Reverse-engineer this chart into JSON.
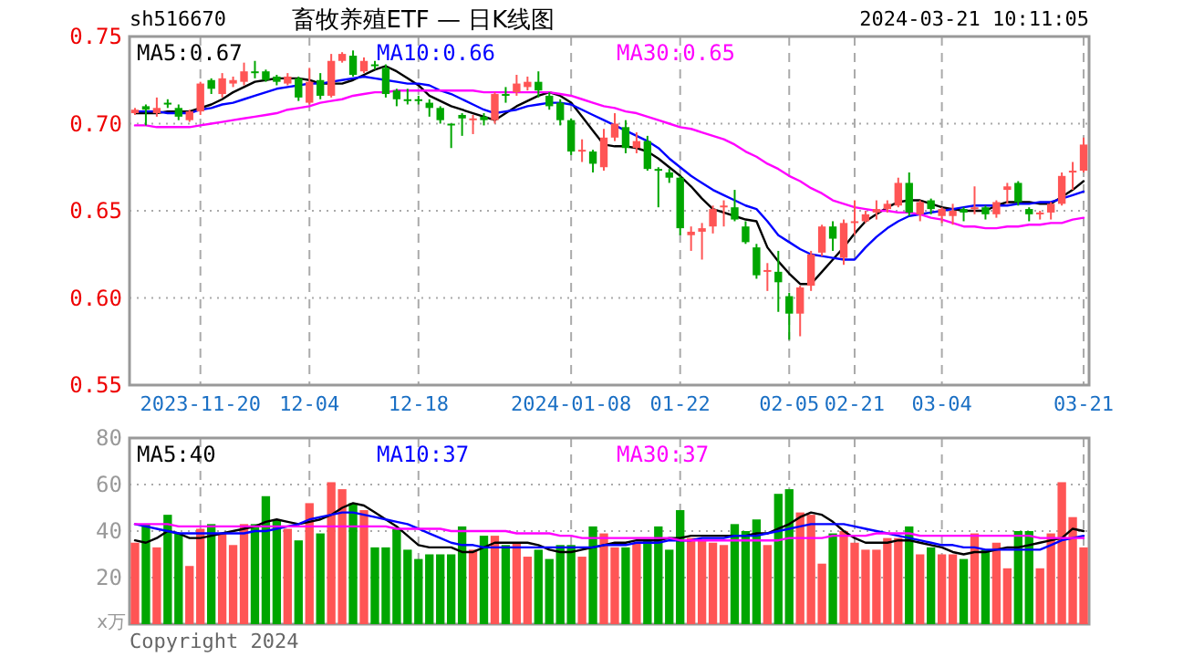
{
  "chart_data": [
    {
      "type": "candlestick",
      "title": "畜牧养殖ETF — 日K线图",
      "subtitle": "sh516670",
      "annotations": [
        "2024-03-21 10:11:05"
      ],
      "categories": [
        null,
        null,
        null,
        null,
        null,
        null,
        "2023-11-20",
        null,
        null,
        null,
        null,
        null,
        null,
        null,
        null,
        null,
        "12-04",
        null,
        null,
        null,
        null,
        null,
        null,
        null,
        null,
        null,
        "12-18",
        null,
        null,
        null,
        null,
        null,
        null,
        null,
        null,
        null,
        null,
        null,
        null,
        null,
        "2024-01-08",
        null,
        null,
        null,
        null,
        null,
        null,
        null,
        null,
        null,
        "01-22",
        null,
        null,
        null,
        null,
        null,
        null,
        null,
        null,
        null,
        "02-05",
        null,
        null,
        null,
        null,
        null,
        "02-21",
        null,
        null,
        null,
        null,
        null,
        null,
        null,
        "03-04",
        null,
        null,
        null,
        null,
        null,
        null,
        null,
        null,
        null,
        null,
        null,
        null,
        "03-21"
      ],
      "ohlc": [
        [
          0.706,
          0.709,
          0.705,
          0.708
        ],
        [
          0.71,
          0.711,
          0.699,
          0.708
        ],
        [
          0.706,
          0.715,
          0.704,
          0.709
        ],
        [
          0.712,
          0.714,
          0.709,
          0.711
        ],
        [
          0.709,
          0.711,
          0.702,
          0.704
        ],
        [
          0.702,
          0.708,
          0.701,
          0.707
        ],
        [
          0.707,
          0.724,
          0.705,
          0.723
        ],
        [
          0.725,
          0.726,
          0.717,
          0.72
        ],
        [
          0.717,
          0.729,
          0.715,
          0.726
        ],
        [
          0.723,
          0.727,
          0.721,
          0.725
        ],
        [
          0.724,
          0.735,
          0.722,
          0.73
        ],
        [
          0.73,
          0.736,
          0.726,
          0.729
        ],
        [
          0.73,
          0.731,
          0.724,
          0.725
        ],
        [
          0.727,
          0.728,
          0.722,
          0.724
        ],
        [
          0.723,
          0.729,
          0.722,
          0.727
        ],
        [
          0.726,
          0.727,
          0.713,
          0.715
        ],
        [
          0.712,
          0.732,
          0.711,
          0.724
        ],
        [
          0.725,
          0.729,
          0.714,
          0.716
        ],
        [
          0.716,
          0.74,
          0.715,
          0.736
        ],
        [
          0.736,
          0.741,
          0.735,
          0.74
        ],
        [
          0.739,
          0.742,
          0.727,
          0.728
        ],
        [
          0.73,
          0.738,
          0.729,
          0.736
        ],
        [
          0.734,
          0.736,
          0.731,
          0.733
        ],
        [
          0.732,
          0.734,
          0.715,
          0.717
        ],
        [
          0.719,
          0.72,
          0.71,
          0.714
        ],
        [
          0.714,
          0.72,
          0.711,
          0.713
        ],
        [
          0.714,
          0.716,
          0.711,
          0.713
        ],
        [
          0.712,
          0.714,
          0.704,
          0.709
        ],
        [
          0.709,
          0.71,
          0.7,
          0.702
        ],
        [
          0.7,
          0.7,
          0.686,
          0.699
        ],
        [
          0.705,
          0.706,
          0.693,
          0.703
        ],
        [
          0.702,
          0.705,
          0.694,
          0.703
        ],
        [
          0.704,
          0.706,
          0.699,
          0.702
        ],
        [
          0.702,
          0.718,
          0.7,
          0.717
        ],
        [
          0.717,
          0.721,
          0.712,
          0.716
        ],
        [
          0.718,
          0.728,
          0.716,
          0.723
        ],
        [
          0.721,
          0.727,
          0.719,
          0.724
        ],
        [
          0.724,
          0.73,
          0.715,
          0.719
        ],
        [
          0.716,
          0.718,
          0.708,
          0.71
        ],
        [
          0.712,
          0.714,
          0.699,
          0.702
        ],
        [
          0.702,
          0.703,
          0.682,
          0.684
        ],
        [
          0.684,
          0.691,
          0.678,
          0.685
        ],
        [
          0.684,
          0.685,
          0.672,
          0.677
        ],
        [
          0.675,
          0.697,
          0.673,
          0.692
        ],
        [
          0.692,
          0.706,
          0.69,
          0.7
        ],
        [
          0.698,
          0.702,
          0.683,
          0.686
        ],
        [
          0.686,
          0.695,
          0.683,
          0.69
        ],
        [
          0.69,
          0.693,
          0.673,
          0.674
        ],
        [
          0.674,
          0.675,
          0.652,
          0.673
        ],
        [
          0.672,
          0.674,
          0.666,
          0.669
        ],
        [
          0.669,
          0.67,
          0.636,
          0.64
        ],
        [
          0.636,
          0.641,
          0.627,
          0.638
        ],
        [
          0.638,
          0.643,
          0.622,
          0.64
        ],
        [
          0.641,
          0.653,
          0.637,
          0.651
        ],
        [
          0.652,
          0.656,
          0.641,
          0.653
        ],
        [
          0.652,
          0.662,
          0.644,
          0.645
        ],
        [
          0.641,
          0.644,
          0.631,
          0.632
        ],
        [
          0.629,
          0.631,
          0.611,
          0.613
        ],
        [
          0.615,
          0.62,
          0.604,
          0.616
        ],
        [
          0.615,
          0.627,
          0.592,
          0.609
        ],
        [
          0.601,
          0.603,
          0.576,
          0.591
        ],
        [
          0.591,
          0.607,
          0.578,
          0.606
        ],
        [
          0.607,
          0.627,
          0.604,
          0.625
        ],
        [
          0.626,
          0.642,
          0.624,
          0.641
        ],
        [
          0.641,
          0.644,
          0.627,
          0.634
        ],
        [
          0.623,
          0.645,
          0.619,
          0.643
        ],
        [
          0.643,
          0.656,
          0.636,
          0.644
        ],
        [
          0.644,
          0.65,
          0.643,
          0.648
        ],
        [
          0.649,
          0.656,
          0.645,
          0.651
        ],
        [
          0.651,
          0.656,
          0.649,
          0.654
        ],
        [
          0.653,
          0.669,
          0.652,
          0.666
        ],
        [
          0.666,
          0.672,
          0.647,
          0.649
        ],
        [
          0.648,
          0.656,
          0.644,
          0.655
        ],
        [
          0.656,
          0.657,
          0.648,
          0.651
        ],
        [
          0.647,
          0.652,
          0.643,
          0.651
        ],
        [
          0.647,
          0.654,
          0.642,
          0.65
        ],
        [
          0.651,
          0.652,
          0.644,
          0.649
        ],
        [
          0.651,
          0.664,
          0.648,
          0.652
        ],
        [
          0.652,
          0.653,
          0.645,
          0.648
        ],
        [
          0.648,
          0.656,
          0.646,
          0.655
        ],
        [
          0.662,
          0.666,
          0.654,
          0.664
        ],
        [
          0.666,
          0.667,
          0.653,
          0.655
        ],
        [
          0.651,
          0.652,
          0.644,
          0.648
        ],
        [
          0.648,
          0.65,
          0.645,
          0.649
        ],
        [
          0.649,
          0.655,
          0.645,
          0.654
        ],
        [
          0.654,
          0.672,
          0.653,
          0.67
        ],
        [
          0.672,
          0.678,
          0.662,
          0.673
        ],
        [
          0.673,
          0.692,
          0.672,
          0.688
        ]
      ],
      "colors": [
        "#ff5555",
        "#00a600",
        "#ff5555",
        "#00a600",
        "#00a600",
        "#ff5555",
        "#ff5555",
        "#00a600",
        "#ff5555",
        "#ff5555",
        "#ff5555",
        "#00a600",
        "#00a600",
        "#00a600",
        "#ff5555",
        "#00a600",
        "#ff5555",
        "#00a600",
        "#ff5555",
        "#ff5555",
        "#00a600",
        "#ff5555",
        "#00a600",
        "#00a600",
        "#00a600",
        "#00a600",
        "#00a600",
        "#00a600",
        "#00a600",
        "#00a600",
        "#00a600",
        "#ff5555",
        "#00a600",
        "#ff5555",
        "#00a600",
        "#ff5555",
        "#ff5555",
        "#00a600",
        "#00a600",
        "#00a600",
        "#00a600",
        "#ff5555",
        "#00a600",
        "#ff5555",
        "#ff5555",
        "#00a600",
        "#ff5555",
        "#00a600",
        "#00a600",
        "#00a600",
        "#00a600",
        "#ff5555",
        "#ff5555",
        "#ff5555",
        "#ff5555",
        "#00a600",
        "#00a600",
        "#00a600",
        "#ff5555",
        "#00a600",
        "#00a600",
        "#ff5555",
        "#ff5555",
        "#ff5555",
        "#00a600",
        "#ff5555",
        "#ff5555",
        "#ff5555",
        "#ff5555",
        "#ff5555",
        "#ff5555",
        "#00a600",
        "#ff5555",
        "#00a600",
        "#ff5555",
        "#ff5555",
        "#00a600",
        "#ff5555",
        "#00a600",
        "#ff5555",
        "#ff5555",
        "#00a600",
        "#00a600",
        "#ff5555",
        "#ff5555",
        "#ff5555",
        "#ff5555",
        "#ff5555"
      ],
      "series": [
        {
          "name": "MA5:0.67",
          "type": "line",
          "color": "#000000",
          "values": [
            0.706,
            0.706,
            0.706,
            0.707,
            0.707,
            0.707,
            0.709,
            0.711,
            0.714,
            0.718,
            0.721,
            0.724,
            0.725,
            0.726,
            0.726,
            0.726,
            0.725,
            0.723,
            0.723,
            0.723,
            0.725,
            0.728,
            0.731,
            0.733,
            0.73,
            0.726,
            0.722,
            0.716,
            0.713,
            0.71,
            0.708,
            0.706,
            0.704,
            0.702,
            0.706,
            0.71,
            0.713,
            0.716,
            0.718,
            0.716,
            0.712,
            0.704,
            0.696,
            0.688,
            0.687,
            0.687,
            0.686,
            0.684,
            0.68,
            0.675,
            0.67,
            0.664,
            0.657,
            0.651,
            0.649,
            0.647,
            0.645,
            0.644,
            0.629,
            0.621,
            0.614,
            0.608,
            0.608,
            0.615,
            0.622,
            0.629,
            0.637,
            0.644,
            0.648,
            0.652,
            0.655,
            0.656,
            0.656,
            0.654,
            0.652,
            0.651,
            0.65,
            0.65,
            0.65,
            0.653,
            0.655,
            0.655,
            0.655,
            0.654,
            0.654,
            0.658,
            0.662,
            0.667
          ]
        },
        {
          "name": "MA10:0.66",
          "type": "line",
          "color": "#0000ff",
          "values": [
            0.707,
            0.707,
            0.707,
            0.706,
            0.706,
            0.706,
            0.708,
            0.709,
            0.711,
            0.712,
            0.714,
            0.716,
            0.718,
            0.72,
            0.721,
            0.722,
            0.723,
            0.723,
            0.724,
            0.725,
            0.726,
            0.727,
            0.726,
            0.725,
            0.724,
            0.723,
            0.723,
            0.722,
            0.719,
            0.717,
            0.714,
            0.711,
            0.708,
            0.706,
            0.707,
            0.708,
            0.71,
            0.711,
            0.712,
            0.712,
            0.711,
            0.708,
            0.705,
            0.702,
            0.699,
            0.696,
            0.693,
            0.69,
            0.686,
            0.68,
            0.675,
            0.67,
            0.666,
            0.662,
            0.659,
            0.656,
            0.653,
            0.651,
            0.644,
            0.636,
            0.632,
            0.628,
            0.625,
            0.624,
            0.623,
            0.622,
            0.622,
            0.629,
            0.635,
            0.64,
            0.644,
            0.647,
            0.648,
            0.649,
            0.65,
            0.651,
            0.652,
            0.653,
            0.653,
            0.653,
            0.653,
            0.654,
            0.654,
            0.655,
            0.655,
            0.657,
            0.659,
            0.661
          ]
        },
        {
          "name": "MA30:0.65",
          "type": "line",
          "color": "#ff00ff",
          "values": [
            0.699,
            0.699,
            0.698,
            0.698,
            0.698,
            0.698,
            0.699,
            0.7,
            0.701,
            0.702,
            0.703,
            0.704,
            0.705,
            0.706,
            0.708,
            0.709,
            0.71,
            0.712,
            0.713,
            0.714,
            0.716,
            0.717,
            0.718,
            0.718,
            0.719,
            0.719,
            0.719,
            0.719,
            0.719,
            0.719,
            0.719,
            0.719,
            0.718,
            0.718,
            0.718,
            0.718,
            0.718,
            0.718,
            0.718,
            0.717,
            0.716,
            0.714,
            0.712,
            0.71,
            0.709,
            0.707,
            0.706,
            0.704,
            0.702,
            0.7,
            0.698,
            0.697,
            0.695,
            0.693,
            0.691,
            0.688,
            0.684,
            0.681,
            0.677,
            0.674,
            0.67,
            0.667,
            0.663,
            0.66,
            0.656,
            0.654,
            0.652,
            0.651,
            0.65,
            0.65,
            0.649,
            0.649,
            0.648,
            0.646,
            0.645,
            0.643,
            0.641,
            0.641,
            0.64,
            0.64,
            0.641,
            0.641,
            0.642,
            0.642,
            0.643,
            0.643,
            0.645,
            0.646
          ]
        }
      ],
      "ylim": [
        0.55,
        0.75
      ],
      "yticks": [
        {
          "value": 0.55,
          "label": "0.55"
        },
        {
          "value": 0.6,
          "label": "0.60"
        },
        {
          "value": 0.65,
          "label": "0.65"
        },
        {
          "value": 0.7,
          "label": "0.70"
        },
        {
          "value": 0.75,
          "label": "0.75"
        }
      ],
      "grid": true,
      "legend": "top"
    },
    {
      "type": "bar",
      "ylabel": "x万",
      "annotations": [
        "Copyright 2024"
      ],
      "categories": [
        null,
        null,
        null,
        null,
        null,
        null,
        null,
        null,
        null,
        null,
        null,
        null,
        null,
        null,
        null,
        null,
        null,
        null,
        null,
        null,
        null,
        null,
        null,
        null,
        null,
        null,
        null,
        null,
        null,
        null,
        null,
        null,
        null,
        null,
        null,
        null,
        null,
        null,
        null,
        null,
        null,
        null,
        null,
        null,
        null,
        null,
        null,
        null,
        null,
        null,
        null,
        null,
        null,
        null,
        null,
        null,
        null,
        null,
        null,
        null,
        null,
        null,
        null,
        null,
        null,
        null,
        null,
        null,
        null,
        null,
        null,
        null,
        null,
        null,
        null,
        null,
        null,
        null,
        null,
        null,
        null,
        null,
        null,
        null,
        null,
        null,
        null,
        null
      ],
      "values": [
        35,
        43,
        33,
        47,
        39,
        25,
        41,
        43,
        39,
        34,
        43,
        43,
        55,
        45,
        41,
        36,
        52,
        39,
        61,
        58,
        52,
        49,
        33,
        33,
        41,
        32,
        28,
        30,
        30,
        30,
        42,
        32,
        38,
        38,
        34,
        35,
        29,
        32,
        28,
        34,
        34,
        29,
        42,
        39,
        33,
        33,
        35,
        36,
        42,
        32,
        49,
        37,
        36,
        35,
        34,
        43,
        40,
        45,
        34,
        56,
        58,
        48,
        47,
        26,
        39,
        40,
        35,
        32,
        32,
        37,
        37,
        42,
        30,
        33,
        30,
        30,
        28,
        39,
        32,
        35,
        24,
        40,
        40,
        24,
        39,
        61,
        46,
        33
      ],
      "colors": [
        "#ff5555",
        "#00a600",
        "#ff5555",
        "#00a600",
        "#00a600",
        "#ff5555",
        "#ff5555",
        "#00a600",
        "#ff5555",
        "#ff5555",
        "#ff5555",
        "#00a600",
        "#00a600",
        "#00a600",
        "#ff5555",
        "#00a600",
        "#ff5555",
        "#00a600",
        "#ff5555",
        "#ff5555",
        "#00a600",
        "#ff5555",
        "#00a600",
        "#00a600",
        "#00a600",
        "#00a600",
        "#00a600",
        "#00a600",
        "#00a600",
        "#00a600",
        "#00a600",
        "#ff5555",
        "#00a600",
        "#ff5555",
        "#00a600",
        "#ff5555",
        "#ff5555",
        "#00a600",
        "#00a600",
        "#00a600",
        "#00a600",
        "#ff5555",
        "#00a600",
        "#ff5555",
        "#ff5555",
        "#00a600",
        "#ff5555",
        "#00a600",
        "#00a600",
        "#00a600",
        "#00a600",
        "#ff5555",
        "#ff5555",
        "#ff5555",
        "#ff5555",
        "#00a600",
        "#00a600",
        "#00a600",
        "#ff5555",
        "#00a600",
        "#00a600",
        "#ff5555",
        "#ff5555",
        "#ff5555",
        "#00a600",
        "#ff5555",
        "#ff5555",
        "#ff5555",
        "#ff5555",
        "#ff5555",
        "#ff5555",
        "#00a600",
        "#ff5555",
        "#00a600",
        "#ff5555",
        "#ff5555",
        "#00a600",
        "#ff5555",
        "#00a600",
        "#ff5555",
        "#ff5555",
        "#00a600",
        "#00a600",
        "#ff5555",
        "#ff5555",
        "#ff5555",
        "#ff5555",
        "#ff5555"
      ],
      "series": [
        {
          "name": "MA5:40",
          "type": "line",
          "color": "#000000",
          "values": [
            36,
            35,
            37,
            40,
            39,
            37,
            37,
            38,
            39,
            40,
            41,
            42,
            44,
            45,
            44,
            43,
            44,
            45,
            47,
            50,
            52,
            51,
            48,
            45,
            42,
            38,
            34,
            33,
            33,
            33,
            31,
            31,
            33,
            35,
            35,
            35,
            35,
            34,
            32,
            31,
            31,
            32,
            33,
            34,
            35,
            35,
            36,
            36,
            36,
            37,
            37,
            38,
            38,
            38,
            38,
            38,
            38,
            39,
            39,
            41,
            43,
            46,
            48,
            47,
            44,
            40,
            37,
            35,
            35,
            35,
            36,
            36,
            35,
            34,
            33,
            31,
            30,
            31,
            31,
            32,
            33,
            33,
            34,
            35,
            36,
            37,
            41,
            40
          ]
        },
        {
          "name": "MA10:37",
          "type": "line",
          "color": "#0000ff",
          "values": [
            43,
            42,
            41,
            40,
            39,
            39,
            39,
            39,
            39,
            39,
            39,
            40,
            40,
            41,
            42,
            43,
            45,
            46,
            47,
            48,
            48,
            47,
            46,
            45,
            44,
            43,
            41,
            39,
            37,
            35,
            34,
            34,
            33,
            33,
            33,
            33,
            33,
            33,
            33,
            33,
            33,
            33,
            33,
            34,
            34,
            34,
            35,
            35,
            35,
            36,
            36,
            36,
            37,
            37,
            37,
            38,
            38,
            38,
            39,
            40,
            41,
            42,
            43,
            43,
            43,
            43,
            42,
            41,
            40,
            39,
            38,
            37,
            36,
            35,
            34,
            34,
            33,
            33,
            32,
            32,
            32,
            32,
            32,
            32,
            34,
            36,
            37,
            38
          ]
        },
        {
          "name": "MA30:37",
          "type": "line",
          "color": "#ff00ff",
          "values": [
            43,
            43,
            43,
            43,
            42,
            42,
            42,
            42,
            42,
            42,
            42,
            42,
            42,
            42,
            42,
            42,
            42,
            42,
            42,
            42,
            42,
            42,
            42,
            42,
            41,
            41,
            41,
            41,
            41,
            40,
            40,
            40,
            40,
            40,
            40,
            39,
            39,
            39,
            39,
            38,
            38,
            37,
            37,
            37,
            37,
            37,
            37,
            37,
            37,
            37,
            36,
            36,
            36,
            36,
            36,
            36,
            36,
            36,
            36,
            36,
            37,
            37,
            37,
            37,
            38,
            38,
            38,
            38,
            39,
            39,
            39,
            39,
            38,
            38,
            38,
            38,
            38,
            38,
            38,
            38,
            38,
            38,
            38,
            37,
            37,
            37,
            37,
            37
          ]
        }
      ],
      "ylim": [
        0,
        80
      ],
      "yticks": [
        20,
        40,
        60,
        80
      ],
      "tick_labels": "y",
      "grid": true,
      "legend": "top"
    }
  ]
}
